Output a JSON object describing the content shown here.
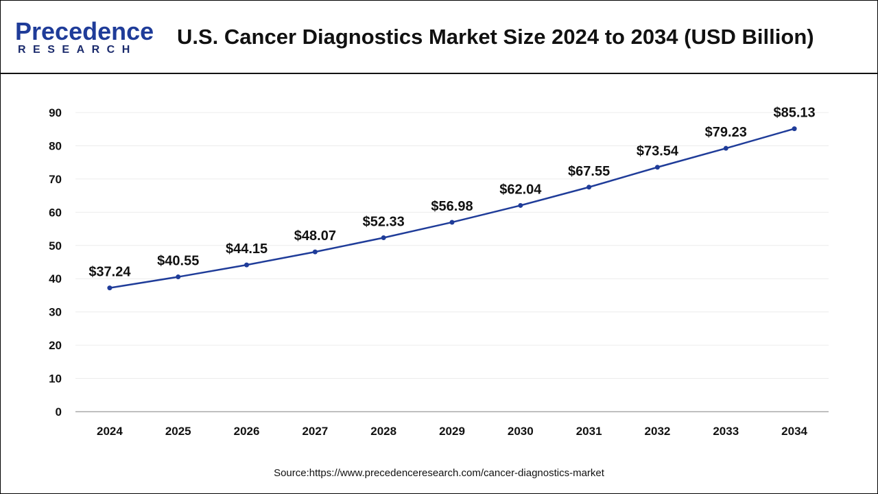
{
  "header": {
    "logo_text": "Precedence",
    "logo_subtext": "RESEARCH",
    "title": "U.S. Cancer Diagnostics Market Size 2024 to 2034 (USD Billion)"
  },
  "chart_data": {
    "type": "line",
    "title": "U.S. Cancer Diagnostics Market Size 2024 to 2034 (USD Billion)",
    "categories": [
      "2024",
      "2025",
      "2026",
      "2027",
      "2028",
      "2029",
      "2030",
      "2031",
      "2032",
      "2033",
      "2034"
    ],
    "values": [
      37.24,
      40.55,
      44.15,
      48.07,
      52.33,
      56.98,
      62.04,
      67.55,
      73.54,
      79.23,
      85.13
    ],
    "data_labels": [
      "$37.24",
      "$40.55",
      "$44.15",
      "$48.07",
      "$52.33",
      "$56.98",
      "$62.04",
      "$67.55",
      "$73.54",
      "$79.23",
      "$85.13"
    ],
    "yticks": [
      0,
      10,
      20,
      30,
      40,
      50,
      60,
      70,
      80,
      90
    ],
    "ylim": [
      0,
      90
    ],
    "grid": true,
    "line_color": "#1f3c99",
    "xlabel": "",
    "ylabel": ""
  },
  "footer": {
    "source": "Source:https://www.precedenceresearch.com/cancer-diagnostics-market"
  }
}
